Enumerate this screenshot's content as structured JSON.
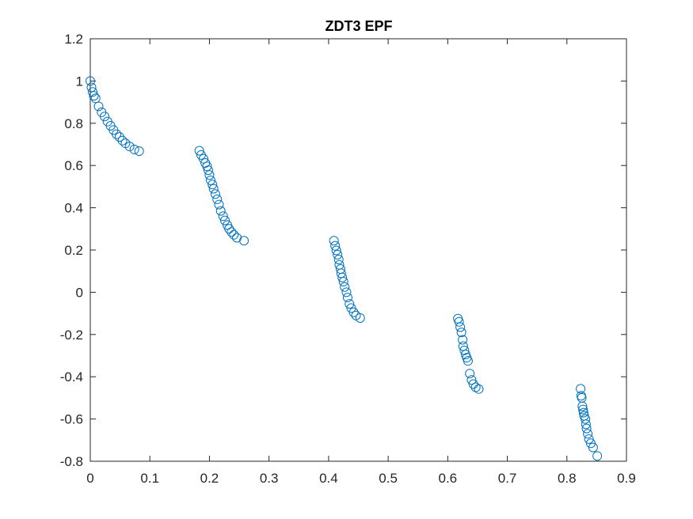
{
  "chart_data": {
    "type": "scatter",
    "title": "ZDT3 EPF",
    "xlabel": "",
    "ylabel": "",
    "xlim": [
      0,
      0.9
    ],
    "ylim": [
      -0.8,
      1.2
    ],
    "xticks": [
      0,
      0.1,
      0.2,
      0.3,
      0.4,
      0.5,
      0.6,
      0.7,
      0.8,
      0.9
    ],
    "xtick_labels": [
      "0",
      "0.1",
      "0.2",
      "0.3",
      "0.4",
      "0.5",
      "0.6",
      "0.7",
      "0.8",
      "0.9"
    ],
    "yticks": [
      -0.8,
      -0.6,
      -0.4,
      -0.2,
      0,
      0.2,
      0.4,
      0.6,
      0.8,
      1,
      1.2
    ],
    "ytick_labels": [
      "-0.8",
      "-0.6",
      "-0.4",
      "-0.2",
      "0",
      "0.2",
      "0.4",
      "0.6",
      "0.8",
      "1",
      "1.2"
    ],
    "grid": false,
    "marker": "open-circle",
    "marker_color": "#0072BD",
    "series": [
      {
        "values": [
          [
            0.0,
            1.0
          ],
          [
            0.002,
            0.97
          ],
          [
            0.004,
            0.948
          ],
          [
            0.006,
            0.93
          ],
          [
            0.009,
            0.918
          ],
          [
            0.014,
            0.88
          ],
          [
            0.019,
            0.852
          ],
          [
            0.024,
            0.832
          ],
          [
            0.029,
            0.808
          ],
          [
            0.034,
            0.788
          ],
          [
            0.039,
            0.768
          ],
          [
            0.044,
            0.748
          ],
          [
            0.049,
            0.735
          ],
          [
            0.054,
            0.718
          ],
          [
            0.059,
            0.705
          ],
          [
            0.066,
            0.69
          ],
          [
            0.074,
            0.676
          ],
          [
            0.082,
            0.668
          ],
          [
            0.183,
            0.67
          ],
          [
            0.186,
            0.65
          ],
          [
            0.19,
            0.632
          ],
          [
            0.193,
            0.612
          ],
          [
            0.196,
            0.596
          ],
          [
            0.198,
            0.578
          ],
          [
            0.2,
            0.555
          ],
          [
            0.202,
            0.53
          ],
          [
            0.205,
            0.51
          ],
          [
            0.207,
            0.49
          ],
          [
            0.21,
            0.465
          ],
          [
            0.213,
            0.44
          ],
          [
            0.216,
            0.415
          ],
          [
            0.219,
            0.385
          ],
          [
            0.223,
            0.36
          ],
          [
            0.226,
            0.34
          ],
          [
            0.23,
            0.318
          ],
          [
            0.233,
            0.3
          ],
          [
            0.237,
            0.285
          ],
          [
            0.241,
            0.272
          ],
          [
            0.246,
            0.258
          ],
          [
            0.258,
            0.244
          ],
          [
            0.409,
            0.244
          ],
          [
            0.411,
            0.22
          ],
          [
            0.413,
            0.198
          ],
          [
            0.415,
            0.178
          ],
          [
            0.417,
            0.155
          ],
          [
            0.418,
            0.13
          ],
          [
            0.42,
            0.11
          ],
          [
            0.421,
            0.09
          ],
          [
            0.423,
            0.07
          ],
          [
            0.425,
            0.05
          ],
          [
            0.427,
            0.025
          ],
          [
            0.43,
            0.0
          ],
          [
            0.432,
            -0.025
          ],
          [
            0.435,
            -0.055
          ],
          [
            0.438,
            -0.075
          ],
          [
            0.442,
            -0.095
          ],
          [
            0.446,
            -0.11
          ],
          [
            0.453,
            -0.122
          ],
          [
            0.617,
            -0.125
          ],
          [
            0.619,
            -0.14
          ],
          [
            0.621,
            -0.165
          ],
          [
            0.623,
            -0.19
          ],
          [
            0.625,
            -0.225
          ],
          [
            0.626,
            -0.255
          ],
          [
            0.628,
            -0.275
          ],
          [
            0.63,
            -0.295
          ],
          [
            0.632,
            -0.31
          ],
          [
            0.634,
            -0.325
          ],
          [
            0.637,
            -0.385
          ],
          [
            0.64,
            -0.415
          ],
          [
            0.643,
            -0.435
          ],
          [
            0.647,
            -0.45
          ],
          [
            0.652,
            -0.458
          ],
          [
            0.823,
            -0.457
          ],
          [
            0.824,
            -0.49
          ],
          [
            0.825,
            -0.5
          ],
          [
            0.826,
            -0.54
          ],
          [
            0.827,
            -0.555
          ],
          [
            0.828,
            -0.57
          ],
          [
            0.829,
            -0.585
          ],
          [
            0.831,
            -0.6
          ],
          [
            0.832,
            -0.625
          ],
          [
            0.833,
            -0.645
          ],
          [
            0.835,
            -0.67
          ],
          [
            0.837,
            -0.695
          ],
          [
            0.84,
            -0.715
          ],
          [
            0.844,
            -0.735
          ],
          [
            0.851,
            -0.775
          ]
        ]
      }
    ]
  }
}
